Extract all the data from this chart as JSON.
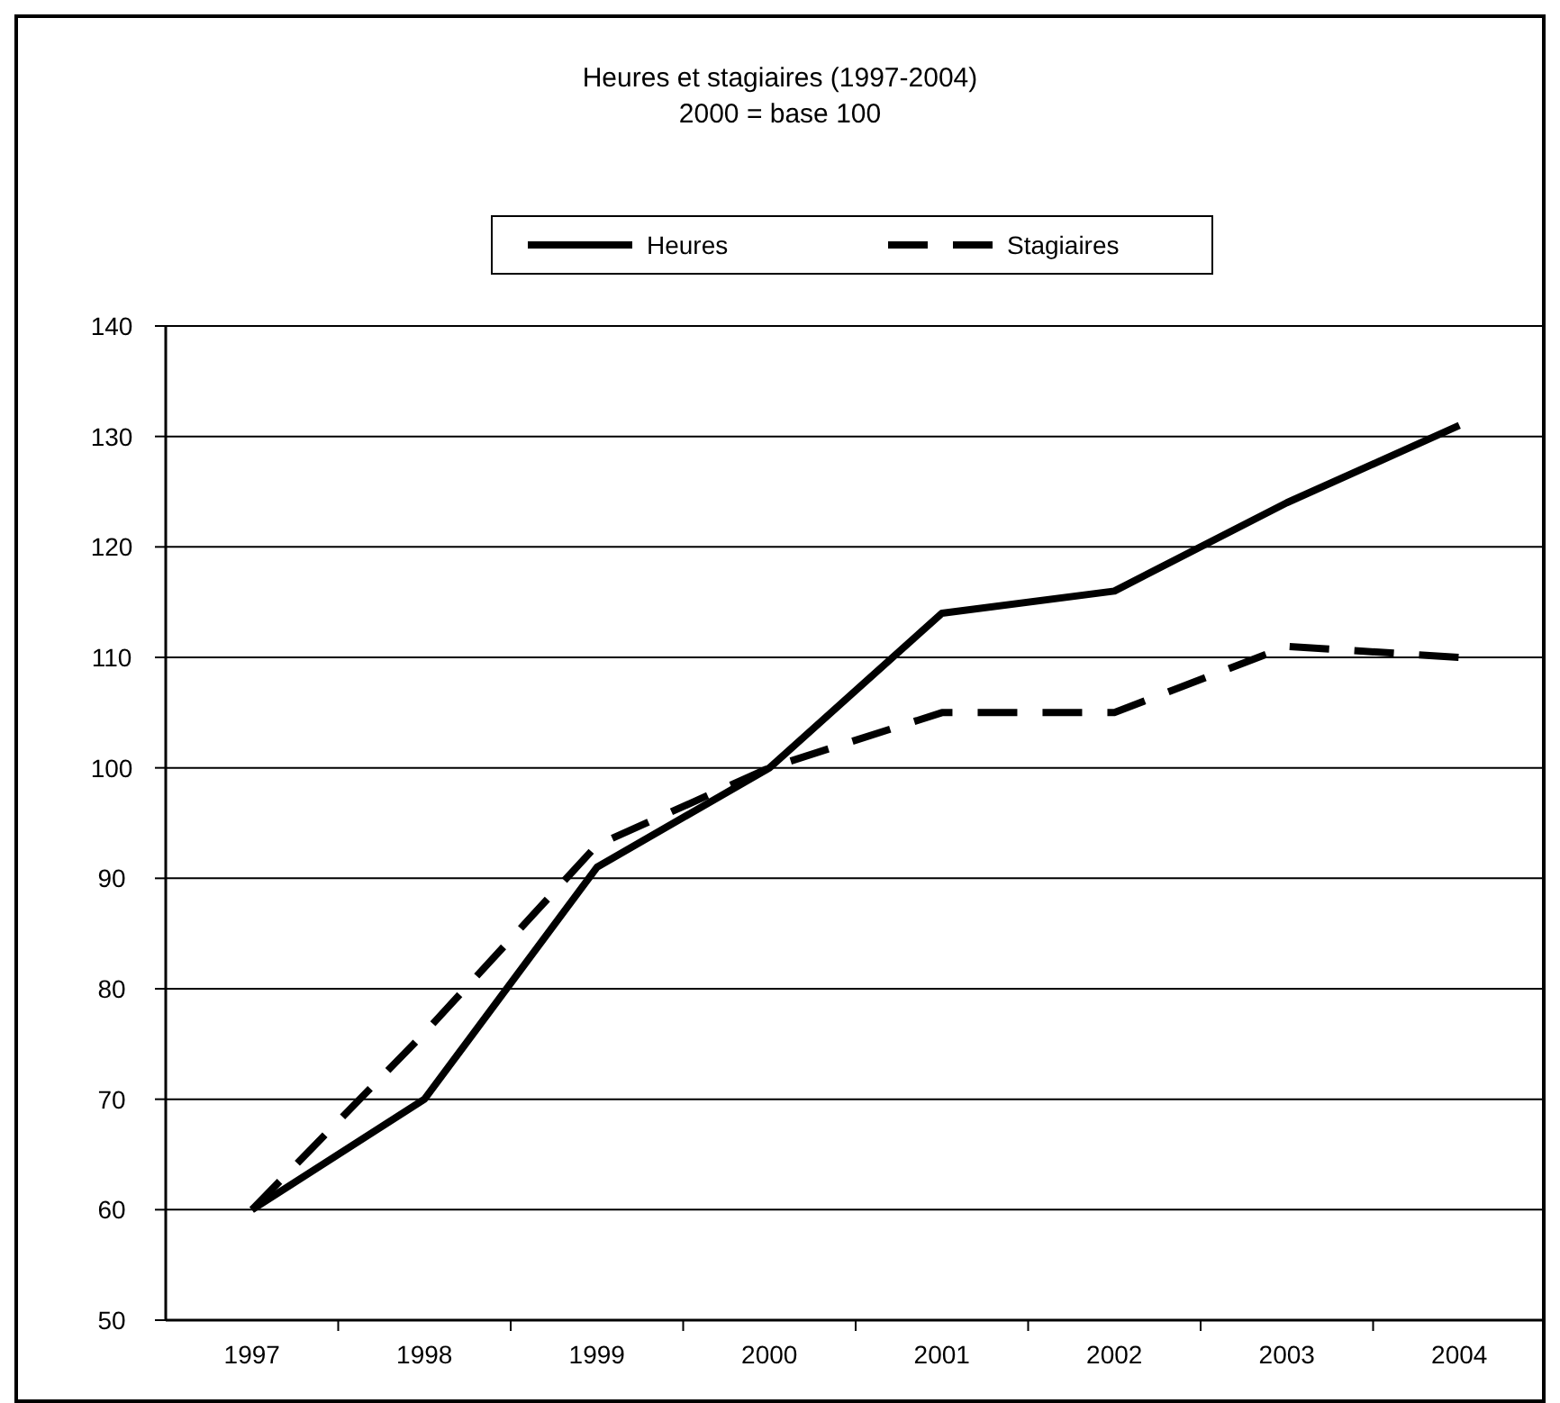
{
  "chart_data": {
    "type": "line",
    "title": "Heures et stagiaires (1997-2004)",
    "subtitle": "2000 = base 100",
    "categories": [
      "1997",
      "1998",
      "1999",
      "2000",
      "2001",
      "2002",
      "2003",
      "2004"
    ],
    "series": [
      {
        "name": "Heures",
        "color": "#000000",
        "line_style": "solid",
        "values": [
          60,
          70,
          91,
          100,
          114,
          116,
          124,
          131
        ]
      },
      {
        "name": "Stagiaires",
        "color": "#000000",
        "line_style": "dashed",
        "values": [
          60,
          76,
          93,
          100,
          105,
          105,
          111,
          110
        ]
      }
    ],
    "ylim": [
      50,
      140
    ],
    "yticks": [
      50,
      60,
      70,
      80,
      90,
      100,
      110,
      120,
      130,
      140
    ],
    "grid": "y",
    "legend": "top",
    "marker": "none"
  }
}
